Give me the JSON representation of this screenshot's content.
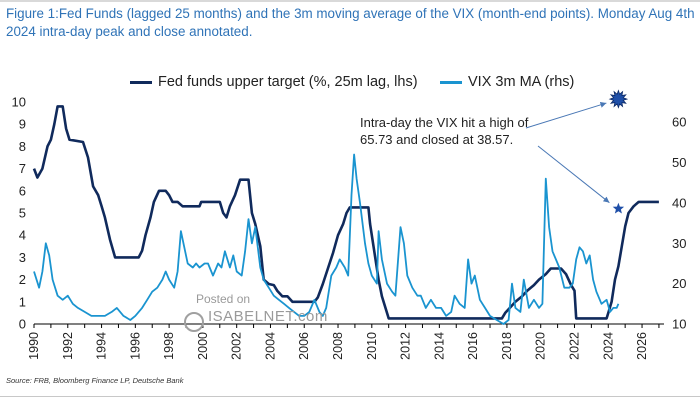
{
  "chart_data": {
    "type": "line",
    "title": "Figure 1:Fed Funds (lagged 25 months) and the 3m moving average of the VIX (month-end points). Monday Aug 4th 2024 intra-day peak and close annotated.",
    "source": "Source: FRB, Bloomberg Finance LP, Deutsche Bank",
    "x_ticks": [
      "1990",
      "1992",
      "1994",
      "1996",
      "1998",
      "2000",
      "2002",
      "2004",
      "2006",
      "2008",
      "2010",
      "2012",
      "2014",
      "2016",
      "2018",
      "2020",
      "2022",
      "2024",
      "2026"
    ],
    "xlim": [
      1990,
      2027.3
    ],
    "y_left": {
      "ticks": [
        0,
        1,
        2,
        3,
        4,
        5,
        6,
        7,
        8,
        9,
        10
      ],
      "ylim": [
        0,
        10
      ]
    },
    "y_right": {
      "ticks": [
        10,
        20,
        30,
        40,
        50,
        60
      ],
      "ylim": [
        10,
        65
      ]
    },
    "series": [
      {
        "name": "Fed funds upper target (%, 25m lag, lhs)",
        "axis": "left",
        "color": "#102a5c",
        "points": [
          [
            1990.0,
            7.0
          ],
          [
            1990.2,
            6.6
          ],
          [
            1990.5,
            7.0
          ],
          [
            1990.8,
            8.0
          ],
          [
            1991.0,
            8.3
          ],
          [
            1991.2,
            9.0
          ],
          [
            1991.4,
            9.8
          ],
          [
            1991.7,
            9.8
          ],
          [
            1991.9,
            8.8
          ],
          [
            1992.1,
            8.3
          ],
          [
            1992.9,
            8.2
          ],
          [
            1993.2,
            7.5
          ],
          [
            1993.5,
            6.2
          ],
          [
            1993.8,
            5.8
          ],
          [
            1994.0,
            5.3
          ],
          [
            1994.2,
            4.8
          ],
          [
            1994.5,
            3.8
          ],
          [
            1994.8,
            3.0
          ],
          [
            1995.2,
            3.0
          ],
          [
            1996.2,
            3.0
          ],
          [
            1996.4,
            3.3
          ],
          [
            1996.6,
            4.0
          ],
          [
            1996.9,
            4.8
          ],
          [
            1997.1,
            5.5
          ],
          [
            1997.4,
            6.0
          ],
          [
            1997.8,
            6.0
          ],
          [
            1998.0,
            5.8
          ],
          [
            1998.2,
            5.5
          ],
          [
            1998.5,
            5.5
          ],
          [
            1998.8,
            5.3
          ],
          [
            1999.8,
            5.3
          ],
          [
            1999.9,
            5.5
          ],
          [
            2000.5,
            5.5
          ],
          [
            2001.0,
            5.5
          ],
          [
            2001.2,
            5.0
          ],
          [
            2001.4,
            4.8
          ],
          [
            2001.6,
            5.3
          ],
          [
            2001.9,
            5.8
          ],
          [
            2002.2,
            6.5
          ],
          [
            2002.7,
            6.5
          ],
          [
            2002.9,
            5.0
          ],
          [
            2003.1,
            4.5
          ],
          [
            2003.4,
            3.5
          ],
          [
            2003.6,
            2.0
          ],
          [
            2003.9,
            1.8
          ],
          [
            2004.2,
            1.75
          ],
          [
            2004.4,
            1.5
          ],
          [
            2004.7,
            1.25
          ],
          [
            2005.0,
            1.25
          ],
          [
            2005.3,
            1.0
          ],
          [
            2006.6,
            1.0
          ],
          [
            2006.8,
            1.2
          ],
          [
            2007.1,
            1.8
          ],
          [
            2007.4,
            2.5
          ],
          [
            2007.7,
            3.2
          ],
          [
            2008.0,
            4.0
          ],
          [
            2008.3,
            4.5
          ],
          [
            2008.5,
            5.0
          ],
          [
            2008.7,
            5.25
          ],
          [
            2009.8,
            5.25
          ],
          [
            2009.9,
            4.5
          ],
          [
            2010.0,
            4.0
          ],
          [
            2010.2,
            3.0
          ],
          [
            2010.4,
            2.0
          ],
          [
            2010.6,
            1.25
          ],
          [
            2011.0,
            0.25
          ],
          [
            2017.7,
            0.25
          ],
          [
            2017.9,
            0.5
          ],
          [
            2018.2,
            0.75
          ],
          [
            2018.5,
            1.0
          ],
          [
            2018.9,
            1.25
          ],
          [
            2019.2,
            1.5
          ],
          [
            2019.6,
            1.75
          ],
          [
            2019.9,
            2.0
          ],
          [
            2020.3,
            2.25
          ],
          [
            2020.6,
            2.5
          ],
          [
            2021.2,
            2.5
          ],
          [
            2021.5,
            2.25
          ],
          [
            2021.8,
            1.75
          ],
          [
            2022.0,
            1.5
          ],
          [
            2022.1,
            0.25
          ],
          [
            2023.0,
            0.25
          ],
          [
            2023.9,
            0.25
          ],
          [
            2024.0,
            0.5
          ],
          [
            2024.2,
            1.0
          ],
          [
            2024.4,
            2.0
          ],
          [
            2024.6,
            2.6
          ],
          [
            2024.8,
            3.5
          ],
          [
            2025.0,
            4.4
          ],
          [
            2025.2,
            5.0
          ],
          [
            2025.5,
            5.3
          ],
          [
            2025.8,
            5.5
          ],
          [
            2027.0,
            5.5
          ]
        ]
      },
      {
        "name": "VIX 3m MA (rhs)",
        "axis": "right",
        "color": "#1a94d0",
        "points": [
          [
            1990.0,
            23
          ],
          [
            1990.3,
            19
          ],
          [
            1990.5,
            23
          ],
          [
            1990.7,
            30
          ],
          [
            1990.9,
            27
          ],
          [
            1991.1,
            21
          ],
          [
            1991.4,
            17
          ],
          [
            1991.7,
            16
          ],
          [
            1992.0,
            17
          ],
          [
            1992.3,
            15
          ],
          [
            1992.6,
            14
          ],
          [
            1993.0,
            13
          ],
          [
            1993.4,
            12
          ],
          [
            1993.8,
            12
          ],
          [
            1994.2,
            12
          ],
          [
            1994.6,
            13
          ],
          [
            1994.9,
            14
          ],
          [
            1995.3,
            12
          ],
          [
            1995.7,
            11
          ],
          [
            1996.0,
            12
          ],
          [
            1996.4,
            14
          ],
          [
            1996.7,
            16
          ],
          [
            1997.0,
            18
          ],
          [
            1997.3,
            19
          ],
          [
            1997.6,
            21
          ],
          [
            1997.8,
            23
          ],
          [
            1998.0,
            21
          ],
          [
            1998.3,
            19
          ],
          [
            1998.5,
            23
          ],
          [
            1998.7,
            33
          ],
          [
            1998.9,
            29
          ],
          [
            1999.1,
            25
          ],
          [
            1999.4,
            24
          ],
          [
            1999.6,
            25
          ],
          [
            1999.8,
            24
          ],
          [
            2000.1,
            25
          ],
          [
            2000.3,
            25
          ],
          [
            2000.6,
            22
          ],
          [
            2000.9,
            25
          ],
          [
            2001.1,
            24
          ],
          [
            2001.3,
            28
          ],
          [
            2001.6,
            24
          ],
          [
            2001.8,
            27
          ],
          [
            2002.0,
            23
          ],
          [
            2002.3,
            22
          ],
          [
            2002.5,
            28
          ],
          [
            2002.7,
            36
          ],
          [
            2002.9,
            30
          ],
          [
            2003.1,
            34
          ],
          [
            2003.4,
            24
          ],
          [
            2003.6,
            21
          ],
          [
            2003.9,
            19
          ],
          [
            2004.2,
            17
          ],
          [
            2004.5,
            16
          ],
          [
            2004.8,
            15
          ],
          [
            2005.1,
            14
          ],
          [
            2005.4,
            13
          ],
          [
            2005.7,
            12
          ],
          [
            2006.0,
            12
          ],
          [
            2006.3,
            13
          ],
          [
            2006.6,
            16
          ],
          [
            2006.9,
            13
          ],
          [
            2007.1,
            12
          ],
          [
            2007.3,
            14
          ],
          [
            2007.6,
            22
          ],
          [
            2007.9,
            24
          ],
          [
            2008.1,
            26
          ],
          [
            2008.4,
            24
          ],
          [
            2008.6,
            22
          ],
          [
            2008.8,
            42
          ],
          [
            2008.95,
            52
          ],
          [
            2009.1,
            46
          ],
          [
            2009.3,
            40
          ],
          [
            2009.6,
            30
          ],
          [
            2009.8,
            25
          ],
          [
            2010.0,
            22
          ],
          [
            2010.3,
            20
          ],
          [
            2010.4,
            33
          ],
          [
            2010.6,
            26
          ],
          [
            2010.9,
            20
          ],
          [
            2011.2,
            18
          ],
          [
            2011.4,
            17
          ],
          [
            2011.7,
            34
          ],
          [
            2011.9,
            30
          ],
          [
            2012.1,
            22
          ],
          [
            2012.4,
            19
          ],
          [
            2012.7,
            17
          ],
          [
            2012.9,
            17
          ],
          [
            2013.2,
            14
          ],
          [
            2013.5,
            16
          ],
          [
            2013.8,
            14
          ],
          [
            2014.1,
            14
          ],
          [
            2014.4,
            12
          ],
          [
            2014.7,
            13
          ],
          [
            2014.9,
            17
          ],
          [
            2015.2,
            15
          ],
          [
            2015.5,
            14
          ],
          [
            2015.7,
            26
          ],
          [
            2015.9,
            20
          ],
          [
            2016.1,
            22
          ],
          [
            2016.4,
            16
          ],
          [
            2016.7,
            14
          ],
          [
            2017.0,
            12
          ],
          [
            2017.4,
            11
          ],
          [
            2017.8,
            10
          ],
          [
            2018.1,
            11
          ],
          [
            2018.3,
            20
          ],
          [
            2018.5,
            14
          ],
          [
            2018.8,
            13
          ],
          [
            2019.0,
            21
          ],
          [
            2019.3,
            14
          ],
          [
            2019.6,
            16
          ],
          [
            2019.9,
            14
          ],
          [
            2020.1,
            15
          ],
          [
            2020.3,
            46
          ],
          [
            2020.5,
            34
          ],
          [
            2020.7,
            28
          ],
          [
            2020.9,
            26
          ],
          [
            2021.1,
            24
          ],
          [
            2021.4,
            19
          ],
          [
            2021.7,
            19
          ],
          [
            2021.9,
            20
          ],
          [
            2022.1,
            26
          ],
          [
            2022.3,
            29
          ],
          [
            2022.5,
            28
          ],
          [
            2022.7,
            25
          ],
          [
            2022.9,
            27
          ],
          [
            2023.1,
            21
          ],
          [
            2023.3,
            18
          ],
          [
            2023.6,
            15
          ],
          [
            2023.9,
            16
          ],
          [
            2024.1,
            13
          ],
          [
            2024.3,
            14
          ],
          [
            2024.5,
            14
          ],
          [
            2024.6,
            15
          ]
        ]
      }
    ],
    "markers": [
      {
        "name": "Intra-day high",
        "x": 2024.6,
        "y_right": 65.73,
        "label": "65.73"
      },
      {
        "name": "Close",
        "x": 2024.6,
        "y_right": 38.57,
        "label": "38.57"
      }
    ],
    "annotation": "Intra-day the VIX hit a high of 65.73 and closed at 38.57.",
    "watermark_small": "Posted on",
    "watermark_brand": "ISABELNET.com"
  }
}
